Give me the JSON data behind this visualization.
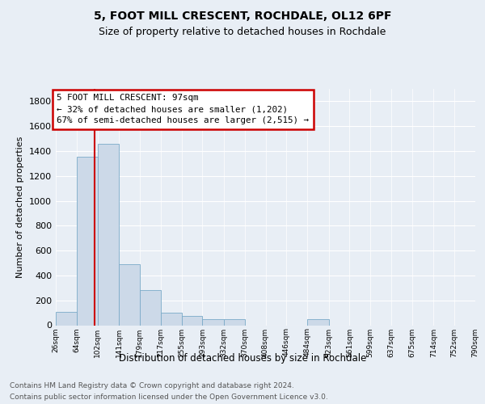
{
  "title": "5, FOOT MILL CRESCENT, ROCHDALE, OL12 6PF",
  "subtitle": "Size of property relative to detached houses in Rochdale",
  "xlabel": "Distribution of detached houses by size in Rochdale",
  "ylabel": "Number of detached properties",
  "bar_color": "#ccd9e8",
  "bar_edge_color": "#7aaac8",
  "property_line_x": 97,
  "annotation_line1": "5 FOOT MILL CRESCENT: 97sqm",
  "annotation_line2": "← 32% of detached houses are smaller (1,202)",
  "annotation_line3": "67% of semi-detached houses are larger (2,515) →",
  "footnote1": "Contains HM Land Registry data © Crown copyright and database right 2024.",
  "footnote2": "Contains public sector information licensed under the Open Government Licence v3.0.",
  "bin_edges": [
    26,
    64,
    102,
    141,
    179,
    217,
    255,
    293,
    332,
    370,
    408,
    446,
    484,
    523,
    561,
    599,
    637,
    675,
    714,
    752,
    790
  ],
  "bar_heights": [
    105,
    1355,
    1460,
    490,
    280,
    100,
    75,
    50,
    50,
    0,
    0,
    0,
    50,
    0,
    0,
    0,
    0,
    0,
    0,
    0
  ],
  "ylim": [
    0,
    1900
  ],
  "yticks": [
    0,
    200,
    400,
    600,
    800,
    1000,
    1200,
    1400,
    1600,
    1800
  ],
  "background_color": "#e8eef5",
  "plot_bg_color": "#e8eef5",
  "grid_color": "#ffffff",
  "annotation_box_facecolor": "#ffffff",
  "annotation_box_edgecolor": "#cc0000",
  "red_line_color": "#cc0000"
}
